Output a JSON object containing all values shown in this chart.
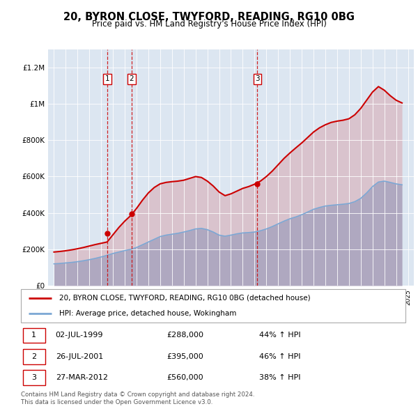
{
  "title": "20, BYRON CLOSE, TWYFORD, READING, RG10 0BG",
  "subtitle": "Price paid vs. HM Land Registry's House Price Index (HPI)",
  "ylim": [
    0,
    1300000
  ],
  "yticks": [
    0,
    200000,
    400000,
    600000,
    800000,
    1000000,
    1200000
  ],
  "ytick_labels": [
    "£0",
    "£200K",
    "£400K",
    "£600K",
    "£800K",
    "£1M",
    "£1.2M"
  ],
  "xlim_start": 1994.5,
  "xlim_end": 2025.5,
  "plot_bg_color": "#dce6f1",
  "hpi_color": "#7ba7d4",
  "price_color": "#cc0000",
  "vline_color": "#cc0000",
  "legend_label_price": "20, BYRON CLOSE, TWYFORD, READING, RG10 0BG (detached house)",
  "legend_label_hpi": "HPI: Average price, detached house, Wokingham",
  "footer": "Contains HM Land Registry data © Crown copyright and database right 2024.\nThis data is licensed under the Open Government Licence v3.0.",
  "sale_dates": [
    1999.5,
    2001.58,
    2012.24
  ],
  "sale_prices": [
    288000,
    395000,
    560000
  ],
  "sale_labels": [
    "1",
    "2",
    "3"
  ],
  "sale_info": [
    [
      "1",
      "02-JUL-1999",
      "£288,000",
      "44% ↑ HPI"
    ],
    [
      "2",
      "26-JUL-2001",
      "£395,000",
      "46% ↑ HPI"
    ],
    [
      "3",
      "27-MAR-2012",
      "£560,000",
      "38% ↑ HPI"
    ]
  ],
  "hpi_years": [
    1995,
    1995.5,
    1996,
    1996.5,
    1997,
    1997.5,
    1998,
    1998.5,
    1999,
    1999.5,
    2000,
    2000.5,
    2001,
    2001.5,
    2002,
    2002.5,
    2003,
    2003.5,
    2004,
    2004.5,
    2005,
    2005.5,
    2006,
    2006.5,
    2007,
    2007.5,
    2008,
    2008.5,
    2009,
    2009.5,
    2010,
    2010.5,
    2011,
    2011.5,
    2012,
    2012.5,
    2013,
    2013.5,
    2014,
    2014.5,
    2015,
    2015.5,
    2016,
    2016.5,
    2017,
    2017.5,
    2018,
    2018.5,
    2019,
    2019.5,
    2020,
    2020.5,
    2021,
    2021.5,
    2022,
    2022.5,
    2023,
    2023.5,
    2024,
    2024.5
  ],
  "hpi_values": [
    120000,
    122000,
    125000,
    128000,
    132000,
    137000,
    143000,
    150000,
    158000,
    167000,
    177000,
    185000,
    193000,
    200000,
    210000,
    225000,
    240000,
    255000,
    270000,
    278000,
    283000,
    288000,
    295000,
    303000,
    312000,
    315000,
    308000,
    295000,
    278000,
    272000,
    278000,
    285000,
    290000,
    292000,
    295000,
    302000,
    312000,
    325000,
    340000,
    355000,
    368000,
    378000,
    390000,
    405000,
    420000,
    430000,
    438000,
    442000,
    445000,
    448000,
    452000,
    462000,
    480000,
    510000,
    545000,
    570000,
    575000,
    568000,
    560000,
    555000
  ],
  "price_years": [
    1995,
    1995.5,
    1996,
    1996.5,
    1997,
    1997.5,
    1998,
    1998.5,
    1999,
    1999.5,
    2000,
    2000.5,
    2001,
    2001.5,
    2002,
    2002.5,
    2003,
    2003.5,
    2004,
    2004.5,
    2005,
    2005.5,
    2006,
    2006.5,
    2007,
    2007.5,
    2008,
    2008.5,
    2009,
    2009.5,
    2010,
    2010.5,
    2011,
    2011.5,
    2012,
    2012.5,
    2013,
    2013.5,
    2014,
    2014.5,
    2015,
    2015.5,
    2016,
    2016.5,
    2017,
    2017.5,
    2018,
    2018.5,
    2019,
    2019.5,
    2020,
    2020.5,
    2021,
    2021.5,
    2022,
    2022.5,
    2023,
    2023.5,
    2024,
    2024.5
  ],
  "price_values": [
    185000,
    188000,
    192000,
    197000,
    203000,
    210000,
    218000,
    226000,
    233000,
    240000,
    280000,
    320000,
    355000,
    385000,
    425000,
    470000,
    510000,
    540000,
    560000,
    568000,
    572000,
    575000,
    580000,
    590000,
    600000,
    595000,
    575000,
    548000,
    515000,
    495000,
    505000,
    520000,
    535000,
    545000,
    558000,
    575000,
    600000,
    630000,
    665000,
    700000,
    730000,
    758000,
    785000,
    815000,
    845000,
    868000,
    885000,
    898000,
    905000,
    910000,
    918000,
    940000,
    975000,
    1020000,
    1065000,
    1095000,
    1075000,
    1045000,
    1020000,
    1005000
  ]
}
